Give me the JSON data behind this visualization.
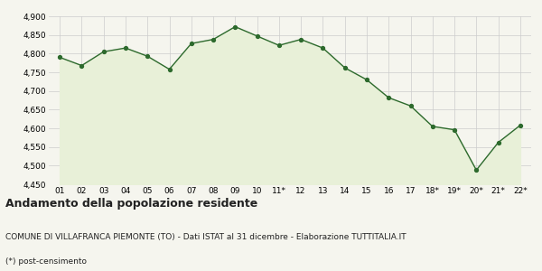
{
  "x_labels": [
    "01",
    "02",
    "03",
    "04",
    "05",
    "06",
    "07",
    "08",
    "09",
    "10",
    "11*",
    "12",
    "13",
    "14",
    "15",
    "16",
    "17",
    "18*",
    "19*",
    "20*",
    "21*",
    "22*"
  ],
  "y_values": [
    4790,
    4768,
    4805,
    4815,
    4793,
    4758,
    4827,
    4838,
    4872,
    4847,
    4822,
    4838,
    4815,
    4762,
    4730,
    4682,
    4660,
    4605,
    4596,
    4488,
    4562,
    4608
  ],
  "ylim": [
    4450,
    4900
  ],
  "yticks": [
    4450,
    4500,
    4550,
    4600,
    4650,
    4700,
    4750,
    4800,
    4850,
    4900
  ],
  "line_color": "#2d6a2d",
  "fill_color": "#e8f0d8",
  "marker_color": "#2d6a2d",
  "bg_color": "#f5f5ee",
  "grid_color": "#cccccc",
  "title": "Andamento della popolazione residente",
  "subtitle": "COMUNE DI VILLAFRANCA PIEMONTE (TO) - Dati ISTAT al 31 dicembre - Elaborazione TUTTITALIA.IT",
  "footnote": "(*) post-censimento",
  "title_fontsize": 9,
  "subtitle_fontsize": 6.5,
  "footnote_fontsize": 6.5,
  "tick_fontsize": 6.5
}
